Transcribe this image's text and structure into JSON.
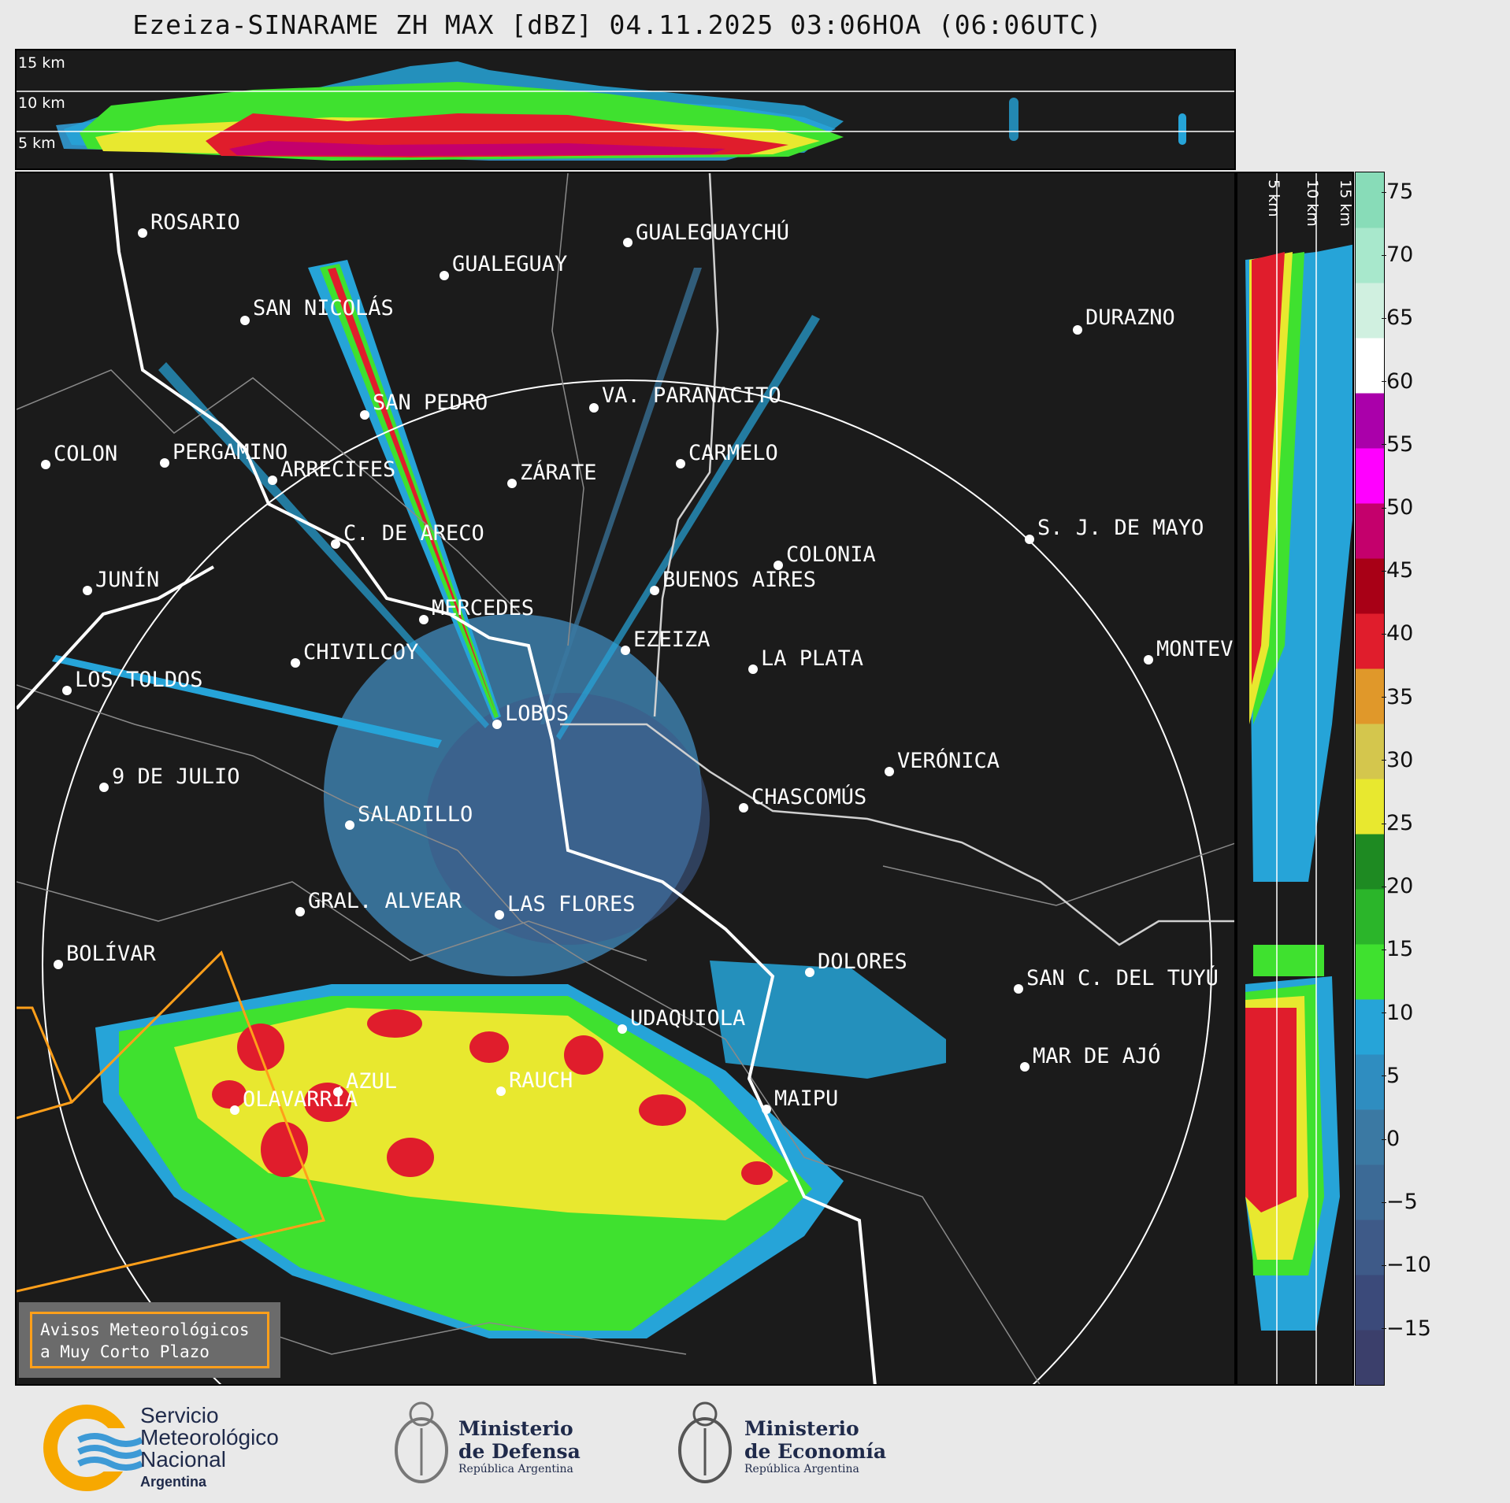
{
  "title": "Ezeiza-SINARAME ZH MAX [dBZ] 04.11.2025 03:06HOA (06:06UTC)",
  "top_panel": {
    "height_labels": [
      "15 km",
      "10 km",
      "5 km"
    ]
  },
  "side_panel": {
    "height_labels": [
      "5 km",
      "10 km",
      "15 km"
    ]
  },
  "colorbar": {
    "ticks": [
      "75",
      "70",
      "65",
      "60",
      "55",
      "50",
      "45",
      "40",
      "35",
      "30",
      "25",
      "20",
      "15",
      "10",
      "5",
      "0",
      "−5",
      "−10",
      "−15"
    ],
    "colors": [
      "#3b3f6b",
      "#3b4a7a",
      "#3e5a88",
      "#3c6a96",
      "#3b79a3",
      "#2f8dc0",
      "#26a4d8",
      "#3fe12f",
      "#2bb52a",
      "#1e8a22",
      "#e8e82f",
      "#d4c64d",
      "#e0982a",
      "#e01d2c",
      "#a80016",
      "#c4006c",
      "#ff00ff",
      "#aa00aa",
      "#ffffff",
      "#d0f0e0",
      "#a8e8cc",
      "#88dcb8"
    ]
  },
  "cities": [
    {
      "name": "ROSARIO"
    },
    {
      "name": "GUALEGUAYCHÚ"
    },
    {
      "name": "GUALEGUAY"
    },
    {
      "name": "SAN NICOLÁS"
    },
    {
      "name": "DURAZNO"
    },
    {
      "name": "SAN PEDRO"
    },
    {
      "name": "VA. PARANACITO"
    },
    {
      "name": "COLON"
    },
    {
      "name": "PERGAMINO"
    },
    {
      "name": "CARMELO"
    },
    {
      "name": "ARRECIFES"
    },
    {
      "name": "ZÁRATE"
    },
    {
      "name": "S. J. DE MAYO"
    },
    {
      "name": "C. DE ARECO"
    },
    {
      "name": "COLONIA"
    },
    {
      "name": "JUNÍN"
    },
    {
      "name": "BUENOS AIRES"
    },
    {
      "name": "MERCEDES"
    },
    {
      "name": "EZEIZA"
    },
    {
      "name": "MONTEVIDEO"
    },
    {
      "name": "CHIVILCOY"
    },
    {
      "name": "LA PLATA"
    },
    {
      "name": "LOS TOLDOS"
    },
    {
      "name": "LOBOS"
    },
    {
      "name": "VERÓNICA"
    },
    {
      "name": "9 DE JULIO"
    },
    {
      "name": "CHASCOMÚS"
    },
    {
      "name": "SALADILLO"
    },
    {
      "name": "GRAL. ALVEAR"
    },
    {
      "name": "LAS FLORES"
    },
    {
      "name": "BOLÍVAR"
    },
    {
      "name": "DOLORES"
    },
    {
      "name": "SAN C. DEL TUYÚ"
    },
    {
      "name": "UDAQUIOLA"
    },
    {
      "name": "MAR DE AJÓ"
    },
    {
      "name": "AZUL"
    },
    {
      "name": "RAUCH"
    },
    {
      "name": "OLAVARRÍA"
    },
    {
      "name": "MAIPU"
    }
  ],
  "legend": {
    "line1": "Avisos Meteorológicos",
    "line2": "a Muy Corto Plazo"
  },
  "footer": {
    "smn": [
      "Servicio",
      "Meteorológico",
      "Nacional",
      "Argentina"
    ],
    "defensa": [
      "Ministerio",
      "de Defensa",
      "República Argentina"
    ],
    "economia": [
      "Ministerio",
      "de Economía",
      "República Argentina"
    ]
  }
}
